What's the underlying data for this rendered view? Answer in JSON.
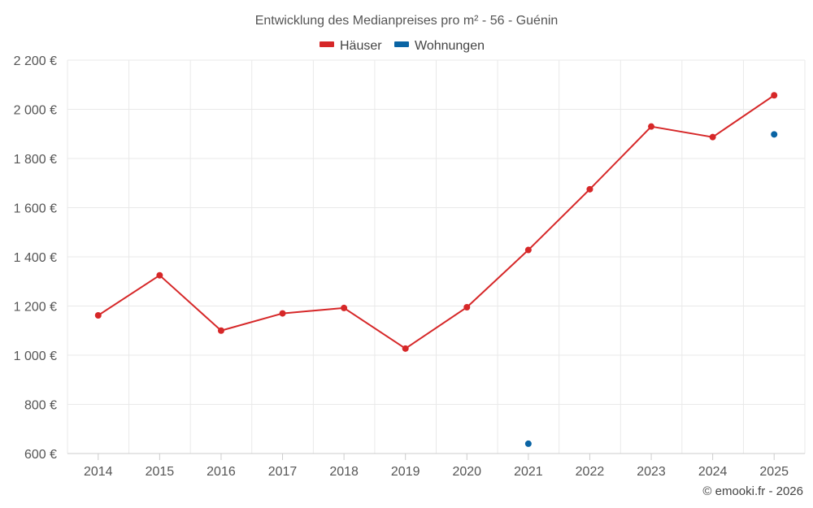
{
  "chart_data": {
    "type": "line",
    "title": "Entwicklung des Medianpreises pro m² - 56 - Guénin",
    "categories": [
      "2014",
      "2015",
      "2016",
      "2017",
      "2018",
      "2019",
      "2020",
      "2021",
      "2022",
      "2023",
      "2024",
      "2025"
    ],
    "series": [
      {
        "name": "Häuser",
        "color": "#d62728",
        "values": [
          1162,
          1325,
          1100,
          1170,
          1192,
          1027,
          1195,
          1428,
          1675,
          1930,
          1887,
          2057
        ]
      },
      {
        "name": "Wohnungen",
        "color": "#0a64a4",
        "values": [
          null,
          null,
          null,
          null,
          null,
          null,
          null,
          640,
          null,
          null,
          null,
          1898
        ]
      }
    ],
    "ylim": [
      600,
      2200
    ],
    "yticks": [
      600,
      800,
      1000,
      1200,
      1400,
      1600,
      1800,
      2000,
      2200
    ],
    "ytick_labels": [
      "600 €",
      "800 €",
      "1 000 €",
      "1 200 €",
      "1 400 €",
      "1 600 €",
      "1 800 €",
      "2 000 €",
      "2 200 €"
    ],
    "grid": true,
    "legend_position": "top-center",
    "xlabel": "",
    "ylabel": ""
  },
  "credit": "© emooki.fr - 2026"
}
